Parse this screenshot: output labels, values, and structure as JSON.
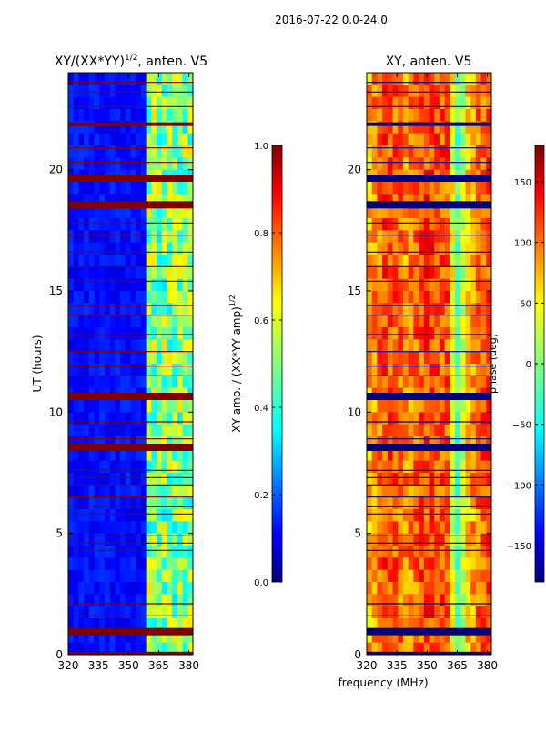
{
  "figure_title": "2016-07-22 0.0-24.0",
  "xlabel": "frequency (MHz)",
  "colormap": [
    "#00007f",
    "#0000ff",
    "#00ffff",
    "#ffff00",
    "#ff0000",
    "#7f0000"
  ],
  "chart_data": [
    {
      "type": "heatmap",
      "title_main": "XY/(XX*YY)",
      "title_sup": "1/2",
      "title_tail": ", anten. V5",
      "ylabel": "UT (hours)",
      "xlim": [
        320,
        382
      ],
      "ylim": [
        0,
        24
      ],
      "xticks": [
        320,
        335,
        350,
        365,
        380
      ],
      "yticks": [
        0,
        5,
        10,
        15,
        20
      ],
      "colorbar": {
        "label_main": "XY amp. / (XX*YY amp)",
        "label_sup": "1/2",
        "range": [
          0.0,
          1.0
        ],
        "ticks": [
          "0.0",
          "0.2",
          "0.4",
          "0.6",
          "0.8",
          "1.0"
        ]
      },
      "background_value": 0.12,
      "bright_region_value": 0.5,
      "bright_freq_range": [
        360,
        382
      ],
      "flagged_value": 1.0,
      "flagged_hour_bands": [
        [
          0.0,
          0.12
        ],
        [
          0.8,
          1.1
        ],
        [
          8.4,
          8.7
        ],
        [
          10.5,
          10.8
        ],
        [
          18.4,
          18.7
        ],
        [
          19.5,
          19.8
        ],
        [
          21.8,
          21.95
        ]
      ],
      "flagged_hour_lines": [
        1.6,
        2.1,
        4.3,
        4.6,
        4.9,
        5.8,
        6.1,
        6.5,
        7.0,
        7.3,
        7.6,
        8.9,
        9.6,
        11.5,
        11.9,
        12.5,
        13.2,
        14.0,
        14.4,
        15.4,
        16.0,
        16.6,
        17.3,
        17.8,
        20.3,
        20.9,
        22.6,
        23.2,
        23.6
      ]
    },
    {
      "type": "heatmap",
      "title_main": "XY, anten. V5",
      "title_sup": "",
      "title_tail": "",
      "ylabel": "",
      "xlim": [
        320,
        382
      ],
      "ylim": [
        0,
        24
      ],
      "xticks": [
        320,
        335,
        350,
        365,
        380
      ],
      "yticks": [
        0,
        5,
        10,
        15,
        20
      ],
      "colorbar": {
        "label_main": "phase (deg)",
        "label_sup": "",
        "range": [
          -180,
          180
        ],
        "ticks": [
          "−150",
          "−100",
          "−50",
          "0",
          "50",
          "100",
          "150"
        ]
      },
      "phase_profile_freqs": [
        320,
        330,
        340,
        350,
        360,
        365,
        370,
        375,
        382
      ],
      "phase_profile_degs": [
        70,
        120,
        90,
        120,
        110,
        -20,
        60,
        100,
        120
      ],
      "flagged_value": -180,
      "flagged_hour_bands": [
        [
          0.0,
          0.12
        ],
        [
          0.8,
          1.1
        ],
        [
          8.4,
          8.7
        ],
        [
          10.5,
          10.8
        ],
        [
          18.4,
          18.7
        ],
        [
          19.5,
          19.8
        ],
        [
          21.8,
          21.95
        ]
      ],
      "flagged_hour_lines": [
        1.6,
        2.1,
        4.3,
        4.6,
        4.9,
        5.8,
        6.1,
        6.5,
        7.0,
        7.3,
        7.6,
        8.9,
        9.6,
        11.5,
        11.9,
        12.5,
        13.2,
        14.0,
        14.4,
        15.4,
        16.0,
        16.6,
        17.3,
        17.8,
        20.3,
        20.9,
        22.6,
        23.2,
        23.6
      ]
    }
  ]
}
